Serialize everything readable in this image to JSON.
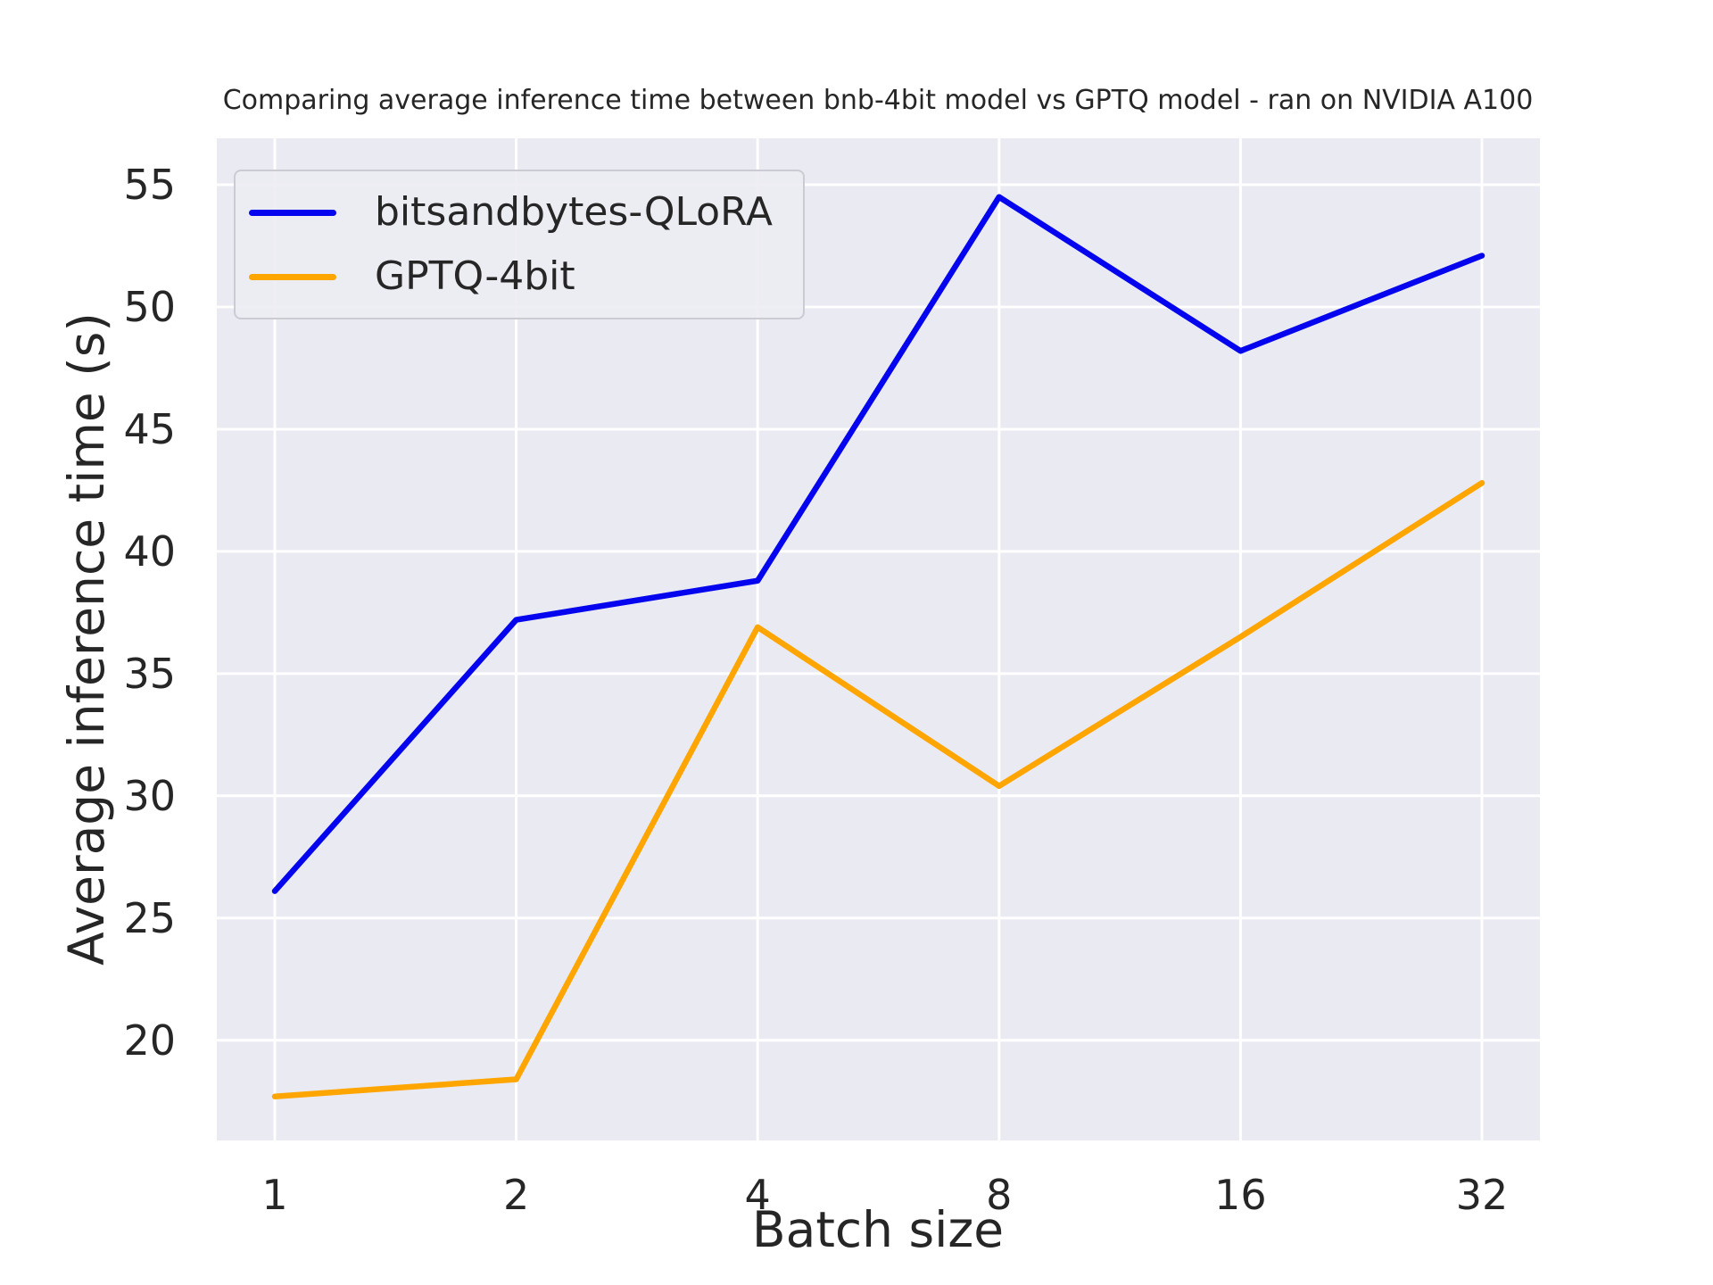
{
  "chart_data": {
    "type": "line",
    "title": "Comparing average inference time between bnb-4bit model vs GPTQ model - ran on NVIDIA A100",
    "xlabel": "Batch size",
    "ylabel": "Average inference time (s)",
    "categories": [
      "1",
      "2",
      "4",
      "8",
      "16",
      "32"
    ],
    "series": [
      {
        "name": "bitsandbytes-QLoRA",
        "color": "#0404ee",
        "values": [
          26.1,
          37.2,
          38.8,
          54.5,
          48.2,
          52.1
        ]
      },
      {
        "name": "GPTQ-4bit",
        "color": "#ffa500",
        "values": [
          17.7,
          18.4,
          36.9,
          30.4,
          36.5,
          42.8
        ]
      }
    ],
    "yticks": [
      20,
      25,
      30,
      35,
      40,
      45,
      50,
      55
    ],
    "ylim": [
      15.9,
      56.9
    ],
    "grid": true,
    "grid_color": "#ffffff",
    "plot_bg": "#eaeaf2",
    "text_color": "#262626",
    "legend_position": "upper left",
    "line_width": 6.5
  }
}
